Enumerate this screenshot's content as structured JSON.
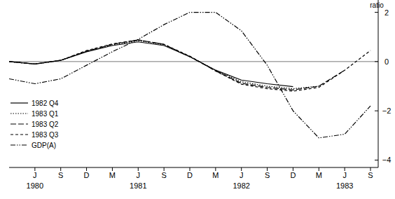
{
  "chart_data": {
    "type": "line",
    "y_label": "ratio",
    "categories": [
      null,
      "J",
      "S",
      "D",
      "M",
      "J",
      "S",
      "D",
      "M",
      "J",
      "S",
      "D",
      "M",
      "J",
      "S"
    ],
    "annotations": [
      {
        "text": "1980",
        "at": 1
      },
      {
        "text": "1981",
        "at": 5
      },
      {
        "text": "1982",
        "at": 9
      },
      {
        "text": "1983",
        "at": 13
      }
    ],
    "ylim": [
      -4.3,
      2.5
    ],
    "yticks": [
      -4,
      -2,
      0,
      2
    ],
    "grid": false,
    "legend": "lower-left",
    "series": [
      {
        "name": "1982 Q4",
        "color": "#000000",
        "line_style": "solid",
        "values": [
          0,
          -0.1,
          0.05,
          0.4,
          0.65,
          0.8,
          0.65,
          0.2,
          -0.35,
          -0.75,
          -0.9,
          -1.02,
          null,
          null,
          null
        ]
      },
      {
        "name": "1983 Q1",
        "color": "#000000",
        "line_style": "dotted",
        "values": [
          0,
          -0.1,
          0.05,
          0.42,
          0.68,
          0.85,
          0.68,
          0.2,
          -0.35,
          -0.82,
          -1.0,
          -1.1,
          -1.0,
          null,
          null
        ]
      },
      {
        "name": "1983 Q2",
        "color": "#000000",
        "line_style": "dashed",
        "values": [
          0,
          -0.1,
          0.05,
          0.42,
          0.7,
          0.88,
          0.7,
          0.2,
          -0.38,
          -0.88,
          -1.05,
          -1.15,
          -1.0,
          -0.35,
          null
        ]
      },
      {
        "name": "1983 Q3",
        "color": "#000000",
        "line_style": "short-dashed",
        "values": [
          0,
          -0.1,
          0.05,
          0.45,
          0.72,
          0.88,
          0.7,
          0.22,
          -0.38,
          -0.92,
          -1.1,
          -1.2,
          -1.05,
          -0.35,
          0.45
        ]
      },
      {
        "name": "GDP(A)",
        "color": "#000000",
        "line_style": "dash-dot-dot",
        "values": [
          -0.7,
          -0.9,
          -0.7,
          -0.15,
          0.4,
          0.9,
          1.5,
          2.0,
          2.0,
          1.25,
          -0.15,
          -2.0,
          -3.1,
          -2.95,
          -1.8
        ]
      }
    ]
  }
}
